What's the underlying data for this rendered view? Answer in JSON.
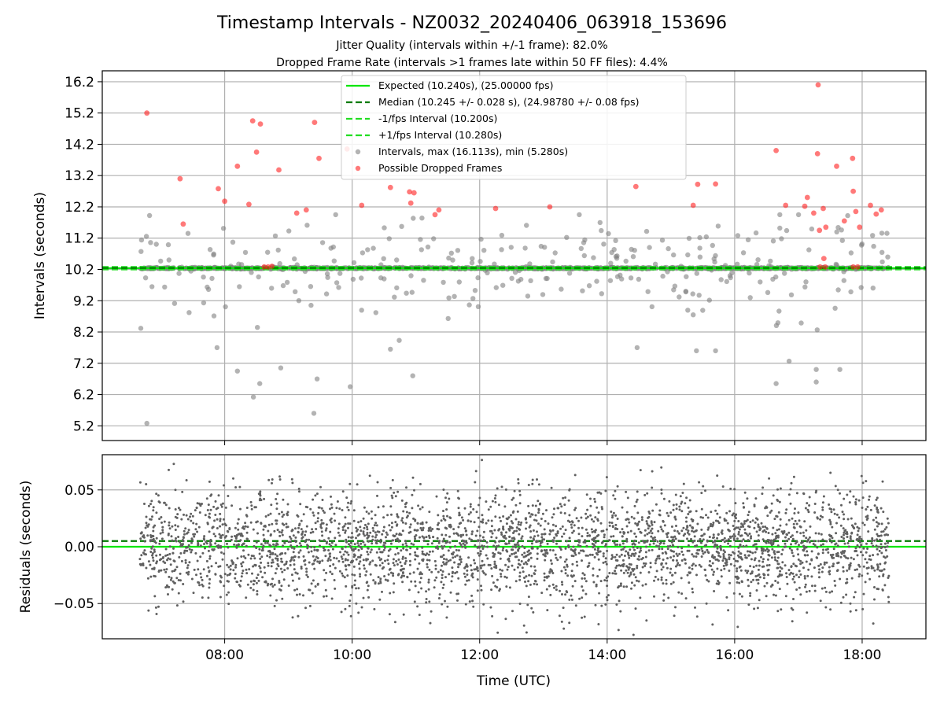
{
  "title": "Timestamp Intervals - NZ0032_20240406_063918_153696",
  "subtitle_1": "Jitter Quality (intervals within +/-1 frame): 82.0%",
  "subtitle_2": "Dropped Frame Rate (intervals >1 frames late within 50 FF files): 4.4%",
  "colors": {
    "expected": "#00e600",
    "median": "#007a00",
    "fps_bounds": "#22dd22",
    "intervals": "#808080",
    "dropped": "#ff2020",
    "residuals": "#606060",
    "grid": "#b0b0b0"
  },
  "chart_data": [
    {
      "type": "scatter",
      "panel": "top",
      "xlabel": "",
      "ylabel": "Intervals (seconds)",
      "x_unit": "hours UTC",
      "xlim": [
        6.08,
        19.0
      ],
      "ylim": [
        4.73,
        16.55
      ],
      "yticks": [
        5.2,
        6.2,
        7.2,
        8.2,
        9.2,
        10.2,
        11.2,
        12.2,
        13.2,
        14.2,
        15.2,
        16.2
      ],
      "ytick_labels": [
        "5.2",
        "6.2",
        "7.2",
        "8.2",
        "9.2",
        "10.2",
        "11.2",
        "12.2",
        "13.2",
        "14.2",
        "15.2",
        "16.2"
      ],
      "xticks": [
        8,
        10,
        12,
        14,
        16,
        18
      ],
      "grid": true,
      "legend_position": "upper-center",
      "legend": [
        {
          "label": "Expected (10.240s), (25.00000 fps)",
          "style": "solid",
          "color": "#00e600"
        },
        {
          "label": "Median (10.245 +/- 0.028 s), (24.98780 +/- 0.08 fps)",
          "style": "dashed",
          "color": "#007a00"
        },
        {
          "label": "-1/fps Interval (10.200s)",
          "style": "dashed",
          "color": "#22dd22"
        },
        {
          "label": "+1/fps Interval (10.280s)",
          "style": "dashed",
          "color": "#22dd22"
        },
        {
          "label": "Intervals, max (16.113s), min (5.280s)",
          "style": "marker",
          "color": "#808080"
        },
        {
          "label": "Possible Dropped Frames",
          "style": "marker",
          "color": "#ff2020"
        }
      ],
      "reference_lines": {
        "expected": 10.24,
        "median": 10.245,
        "minus_one_fps": 10.2,
        "plus_one_fps": 10.28
      },
      "series": [
        {
          "name": "Intervals, max (16.113s), min (5.280s)",
          "x_start": 6.67,
          "x_end": 18.42,
          "typical_value": 10.24,
          "max": 16.113,
          "min": 5.28
        },
        {
          "name": "Possible Dropped Frames",
          "points": [
            [
              6.78,
              15.2
            ],
            [
              7.3,
              13.1
            ],
            [
              7.35,
              11.65
            ],
            [
              7.9,
              12.78
            ],
            [
              8.0,
              12.38
            ],
            [
              8.2,
              13.5
            ],
            [
              8.38,
              12.28
            ],
            [
              8.44,
              14.95
            ],
            [
              8.5,
              13.95
            ],
            [
              8.56,
              14.85
            ],
            [
              8.85,
              13.38
            ],
            [
              9.13,
              12.0
            ],
            [
              9.28,
              12.1
            ],
            [
              9.41,
              14.9
            ],
            [
              9.48,
              13.75
            ],
            [
              9.92,
              14.05
            ],
            [
              10.15,
              12.25
            ],
            [
              10.6,
              12.82
            ],
            [
              10.9,
              12.68
            ],
            [
              10.97,
              12.65
            ],
            [
              10.92,
              12.32
            ],
            [
              11.3,
              11.95
            ],
            [
              11.36,
              12.1
            ],
            [
              12.25,
              12.15
            ],
            [
              13.1,
              12.2
            ],
            [
              14.45,
              12.85
            ],
            [
              15.35,
              12.25
            ],
            [
              15.42,
              12.92
            ],
            [
              15.7,
              12.93
            ],
            [
              16.65,
              14.0
            ],
            [
              16.8,
              12.25
            ],
            [
              17.1,
              12.22
            ],
            [
              17.14,
              12.5
            ],
            [
              17.24,
              12.0
            ],
            [
              17.33,
              11.45
            ],
            [
              17.3,
              13.9
            ],
            [
              17.31,
              16.1
            ],
            [
              17.39,
              12.15
            ],
            [
              17.43,
              11.55
            ],
            [
              17.4,
              10.55
            ],
            [
              17.6,
              13.5
            ],
            [
              17.72,
              11.75
            ],
            [
              17.85,
              13.75
            ],
            [
              17.86,
              12.7
            ],
            [
              17.9,
              12.05
            ],
            [
              17.96,
              11.55
            ],
            [
              18.13,
              12.25
            ],
            [
              18.22,
              11.97
            ],
            [
              18.3,
              12.1
            ],
            [
              8.62,
              10.28
            ],
            [
              8.68,
              10.28
            ],
            [
              8.74,
              10.3
            ],
            [
              17.34,
              10.28
            ],
            [
              17.42,
              10.28
            ],
            [
              17.86,
              10.28
            ],
            [
              17.93,
              10.28
            ]
          ]
        }
      ]
    },
    {
      "type": "scatter",
      "panel": "bottom",
      "xlabel": "Time (UTC)",
      "ylabel": "Residuals (seconds)",
      "x_unit": "hours UTC",
      "xlim": [
        6.08,
        19.0
      ],
      "ylim": [
        -0.081,
        0.081
      ],
      "yticks": [
        -0.05,
        0.0,
        0.05
      ],
      "ytick_labels": [
        "−0.05",
        "0.00",
        "0.05"
      ],
      "xticks": [
        8,
        10,
        12,
        14,
        16,
        18
      ],
      "xtick_labels": [
        "08:00",
        "10:00",
        "12:00",
        "14:00",
        "16:00",
        "18:00"
      ],
      "grid": true,
      "reference_lines": {
        "expected": 0.0,
        "median": 0.005
      },
      "series": [
        {
          "name": "Residuals",
          "x_start": 6.67,
          "x_end": 18.42,
          "typical_spread": 0.025,
          "max": 0.078,
          "min": -0.078
        }
      ]
    }
  ]
}
